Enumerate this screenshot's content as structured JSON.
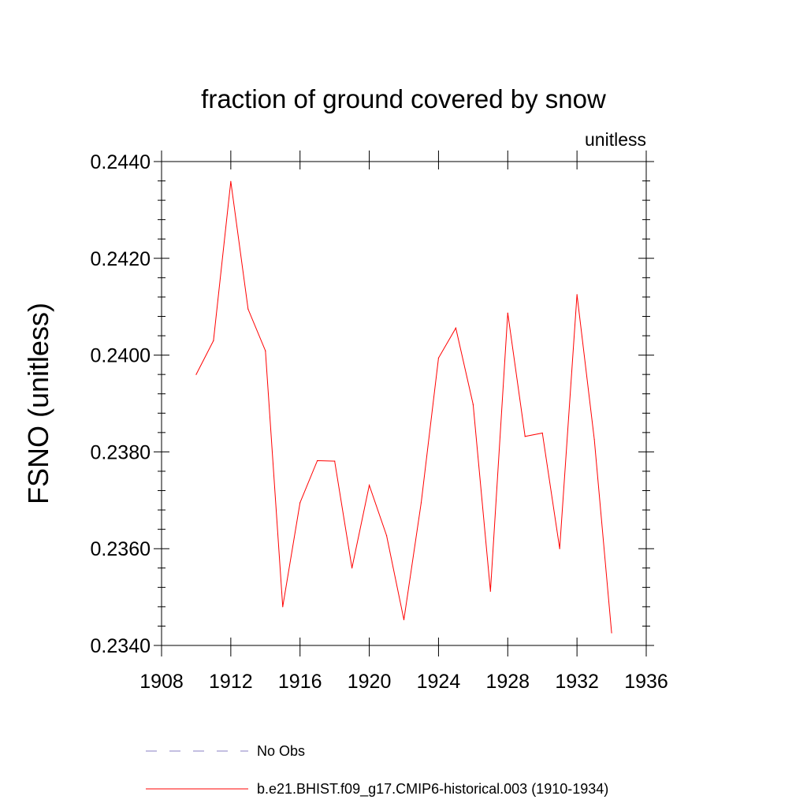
{
  "chart_data": {
    "type": "line",
    "title": "fraction of ground covered by snow",
    "units_label": "unitless",
    "xlabel": "",
    "ylabel": "FSNO  (unitless)",
    "xlim": [
      1908,
      1936
    ],
    "ylim": [
      0.234,
      0.244
    ],
    "x_ticks": [
      1908,
      1912,
      1916,
      1920,
      1924,
      1928,
      1932,
      1936
    ],
    "x_tick_labels": [
      "1908",
      "1912",
      "1916",
      "1920",
      "1924",
      "1928",
      "1932",
      "1936"
    ],
    "y_ticks": [
      0.234,
      0.236,
      0.238,
      0.24,
      0.242,
      0.244
    ],
    "y_tick_labels": [
      "0.2340",
      "0.2360",
      "0.2380",
      "0.2400",
      "0.2420",
      "0.2440"
    ],
    "series": [
      {
        "name": "b.e21.BHIST.f09_g17.CMIP6-historical.003 (1910-1934)",
        "color": "#ff0000",
        "style": "solid",
        "x": [
          1910,
          1911,
          1912,
          1913,
          1914,
          1915,
          1916,
          1917,
          1918,
          1919,
          1920,
          1921,
          1922,
          1923,
          1924,
          1925,
          1926,
          1927,
          1928,
          1929,
          1930,
          1931,
          1932,
          1933,
          1934
        ],
        "values": [
          0.2396,
          0.2403,
          0.24359,
          0.24095,
          0.24009,
          0.2348,
          0.23695,
          0.23782,
          0.23781,
          0.2356,
          0.23731,
          0.23627,
          0.23453,
          0.23695,
          0.23994,
          0.24056,
          0.23898,
          0.23512,
          0.24087,
          0.23832,
          0.23839,
          0.236,
          0.24125,
          0.23826,
          0.23426
        ]
      }
    ],
    "legend": [
      {
        "label": "No Obs",
        "color": "#8a7fc4",
        "style": "dashed"
      },
      {
        "label": "b.e21.BHIST.f09_g17.CMIP6-historical.003 (1910-1934)",
        "color": "#ff0000",
        "style": "solid"
      }
    ]
  }
}
